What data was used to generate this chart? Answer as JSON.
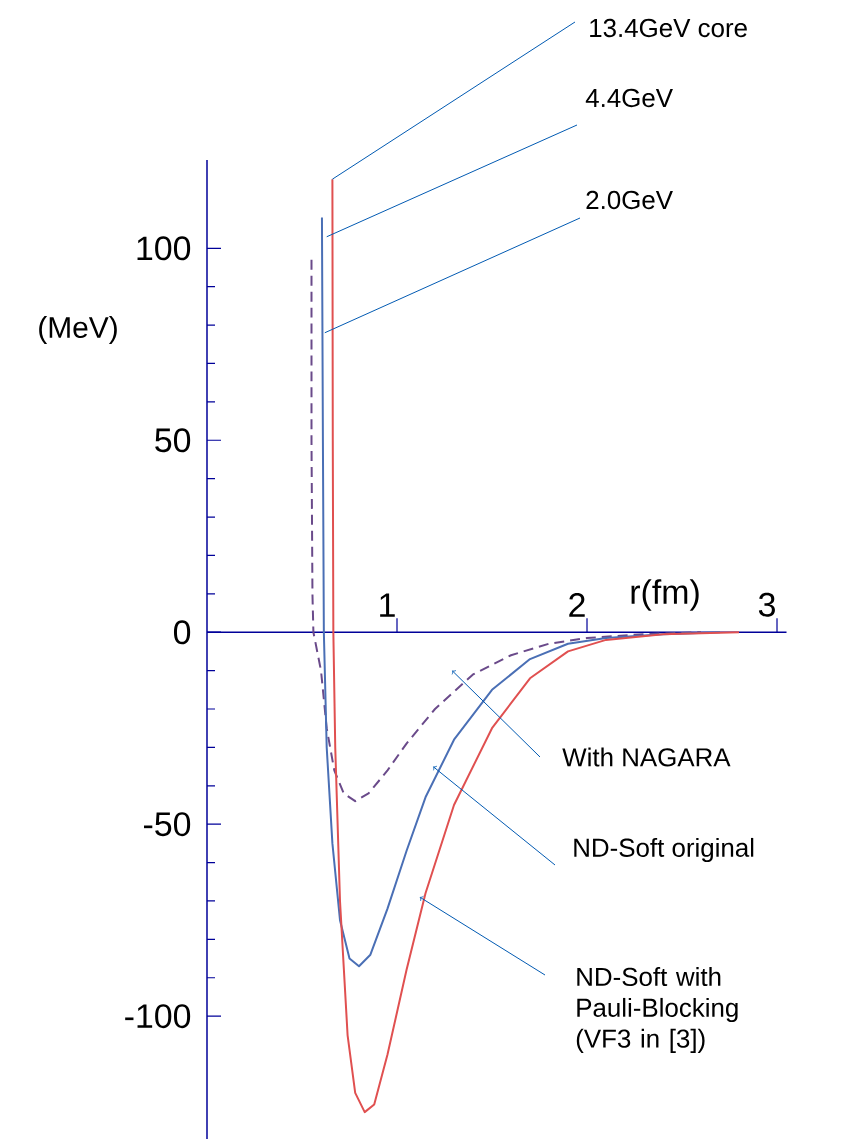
{
  "chart_data": {
    "type": "line",
    "xlabel": "r(fm)",
    "ylabel": "(MeV)",
    "xlim": [
      0,
      3.05
    ],
    "ylim": [
      -132,
      123
    ],
    "xticks": [
      1,
      2,
      3
    ],
    "yticks": [
      -100,
      -50,
      0,
      50,
      100
    ],
    "grid": false,
    "series": [
      {
        "color": "#6a4a8a",
        "line_style": "dashed",
        "x": [
          0.55,
          0.55,
          0.555,
          0.56,
          0.6,
          0.63,
          0.67,
          0.72,
          0.78,
          0.85,
          0.95,
          1.05,
          1.2,
          1.4,
          1.6,
          1.8,
          2.0,
          2.3,
          2.6
        ],
        "values": [
          97,
          50,
          10,
          0,
          -10,
          -25,
          -36,
          -42,
          -44,
          -42,
          -36,
          -29,
          -20,
          -11,
          -6,
          -3,
          -1.5,
          -0.5,
          0
        ]
      },
      {
        "color": "#4a6fb5",
        "line_style": "solid",
        "x": [
          0.605,
          0.61,
          0.615,
          0.63,
          0.66,
          0.7,
          0.75,
          0.8,
          0.86,
          0.95,
          1.05,
          1.15,
          1.3,
          1.5,
          1.7,
          1.9,
          2.1,
          2.4,
          2.7
        ],
        "values": [
          108,
          50,
          0,
          -30,
          -55,
          -75,
          -85,
          -87,
          -84,
          -72,
          -57,
          -43,
          -28,
          -15,
          -7,
          -3,
          -1.5,
          -0.5,
          0
        ]
      },
      {
        "color": "#e05050",
        "line_style": "solid",
        "x": [
          0.66,
          0.662,
          0.665,
          0.675,
          0.7,
          0.74,
          0.78,
          0.83,
          0.88,
          0.95,
          1.05,
          1.15,
          1.3,
          1.5,
          1.7,
          1.9,
          2.1,
          2.4,
          2.8
        ],
        "values": [
          118,
          50,
          0,
          -30,
          -70,
          -105,
          -120,
          -125,
          -123,
          -110,
          -88,
          -68,
          -45,
          -25,
          -12,
          -5,
          -2,
          -0.5,
          0
        ]
      }
    ],
    "annotations": [
      {
        "text": "13.4GeV core",
        "x": 0.66,
        "y": 118
      },
      {
        "text": "4.4GeV",
        "x": 0.63,
        "y": 103
      },
      {
        "text": "2.0GeV",
        "x": 0.62,
        "y": 78
      },
      {
        "text": "With NAGARA",
        "x": 1.29,
        "y": -10
      },
      {
        "text": "ND-Soft original",
        "x": 1.19,
        "y": -35
      },
      {
        "text": "ND-Soft with Pauli-Blocking (VF3 in [3])",
        "x": 1.12,
        "y": -69
      }
    ]
  }
}
